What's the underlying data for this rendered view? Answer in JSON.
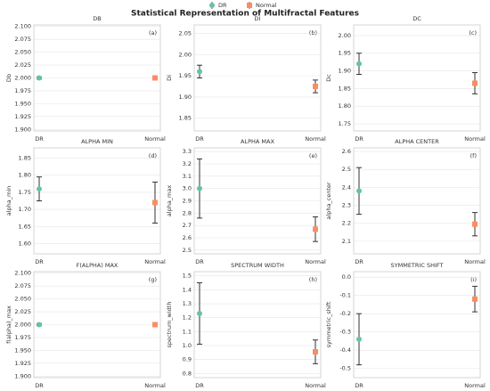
{
  "title": "Statistical Representation of Multifractal Features",
  "legend": [
    {
      "name": "DR",
      "color": "#66c2a5",
      "marker": "circle"
    },
    {
      "name": "Normal",
      "color": "#fc8d62",
      "marker": "square"
    }
  ],
  "chart_data": [
    {
      "type": "errorbar",
      "title": "DB",
      "panel_label": "(a)",
      "y_label": "Db",
      "categories": [
        "DR",
        "Normal"
      ],
      "values": [
        2.0,
        2.0
      ],
      "errors": [
        0.002,
        0.002
      ],
      "colors": [
        "#66c2a5",
        "#fc8d62"
      ],
      "ylim": [
        1.897,
        2.103
      ],
      "yticks": [
        {
          "value": 1.9,
          "label": "1.900"
        },
        {
          "value": 1.925,
          "label": "1.925"
        },
        {
          "value": 1.95,
          "label": "1.950"
        },
        {
          "value": 1.975,
          "label": "1.975"
        },
        {
          "value": 2.0,
          "label": "2.000"
        },
        {
          "value": 2.025,
          "label": "2.025"
        },
        {
          "value": 2.05,
          "label": "2.050"
        },
        {
          "value": 2.075,
          "label": "2.075"
        },
        {
          "value": 2.1,
          "label": "2.100"
        }
      ],
      "grid": true
    },
    {
      "type": "errorbar",
      "title": "DI",
      "panel_label": "(b)",
      "y_label": "Di",
      "categories": [
        "DR",
        "Normal"
      ],
      "values": [
        1.96,
        1.925
      ],
      "errors": [
        0.015,
        0.015
      ],
      "colors": [
        "#66c2a5",
        "#fc8d62"
      ],
      "ylim": [
        1.82,
        2.07
      ],
      "yticks": [
        1.85,
        {
          "value": 1.9,
          "label": "1.90"
        },
        1.95,
        {
          "value": 2.0,
          "label": "2.00"
        },
        2.05
      ],
      "grid": true
    },
    {
      "type": "errorbar",
      "title": "DC",
      "panel_label": "(c)",
      "y_label": "Dc",
      "categories": [
        "DR",
        "Normal"
      ],
      "values": [
        1.92,
        1.865
      ],
      "errors": [
        0.03,
        0.03
      ],
      "colors": [
        "#66c2a5",
        "#fc8d62"
      ],
      "ylim": [
        1.73,
        2.03
      ],
      "yticks": [
        1.75,
        {
          "value": 1.8,
          "label": "1.80"
        },
        1.85,
        {
          "value": 1.9,
          "label": "1.90"
        },
        1.95,
        {
          "value": 2.0,
          "label": "2.00"
        }
      ],
      "grid": true
    },
    {
      "type": "errorbar",
      "title": "ALPHA MIN",
      "panel_label": "(d)",
      "y_label": "alpha_min",
      "categories": [
        "DR",
        "Normal"
      ],
      "values": [
        1.76,
        1.72
      ],
      "errors": [
        0.035,
        0.06
      ],
      "colors": [
        "#66c2a5",
        "#fc8d62"
      ],
      "ylim": [
        1.57,
        1.88
      ],
      "yticks": [
        {
          "value": 1.6,
          "label": "1.60"
        },
        1.65,
        {
          "value": 1.7,
          "label": "1.70"
        },
        1.75,
        {
          "value": 1.8,
          "label": "1.80"
        },
        1.85
      ],
      "grid": true
    },
    {
      "type": "errorbar",
      "title": "ALPHA MAX",
      "panel_label": "(e)",
      "y_label": "alpha_max",
      "categories": [
        "DR",
        "Normal"
      ],
      "values": [
        3.0,
        2.67
      ],
      "errors": [
        0.24,
        0.1
      ],
      "colors": [
        "#66c2a5",
        "#fc8d62"
      ],
      "ylim": [
        2.47,
        3.33
      ],
      "yticks": [
        2.5,
        2.6,
        2.7,
        2.8,
        2.9,
        {
          "value": 3.0,
          "label": "3.0"
        },
        3.1,
        3.2,
        3.3
      ],
      "grid": true
    },
    {
      "type": "errorbar",
      "title": "ALPHA CENTER",
      "panel_label": "(f)",
      "y_label": "alpha_center",
      "categories": [
        "DR",
        "Normal"
      ],
      "values": [
        2.38,
        2.195
      ],
      "errors": [
        0.13,
        0.065
      ],
      "colors": [
        "#66c2a5",
        "#fc8d62"
      ],
      "ylim": [
        2.03,
        2.62
      ],
      "yticks": [
        2.1,
        2.2,
        2.3,
        2.4,
        2.5,
        2.6
      ],
      "grid": true
    },
    {
      "type": "errorbar",
      "title": "F(ALPHA) MAX",
      "panel_label": "(g)",
      "y_label": "f(alpha)_max",
      "categories": [
        "DR",
        "Normal"
      ],
      "values": [
        2.0,
        2.0
      ],
      "errors": [
        0.002,
        0.002
      ],
      "colors": [
        "#66c2a5",
        "#fc8d62"
      ],
      "ylim": [
        1.897,
        2.103
      ],
      "yticks": [
        {
          "value": 1.9,
          "label": "1.900"
        },
        {
          "value": 1.925,
          "label": "1.925"
        },
        {
          "value": 1.95,
          "label": "1.950"
        },
        {
          "value": 1.975,
          "label": "1.975"
        },
        {
          "value": 2.0,
          "label": "2.000"
        },
        {
          "value": 2.025,
          "label": "2.025"
        },
        {
          "value": 2.05,
          "label": "2.050"
        },
        {
          "value": 2.075,
          "label": "2.075"
        },
        {
          "value": 2.1,
          "label": "2.100"
        }
      ],
      "grid": true
    },
    {
      "type": "errorbar",
      "title": "SPECTRUM WIDTH",
      "panel_label": "(h)",
      "y_label": "spectrum_width",
      "categories": [
        "DR",
        "Normal"
      ],
      "values": [
        1.23,
        0.955
      ],
      "errors": [
        0.22,
        0.085
      ],
      "colors": [
        "#66c2a5",
        "#fc8d62"
      ],
      "ylim": [
        0.77,
        1.53
      ],
      "yticks": [
        0.8,
        0.9,
        {
          "value": 1.0,
          "label": "1.0"
        },
        1.1,
        1.2,
        1.3,
        1.4,
        1.5
      ],
      "grid": true
    },
    {
      "type": "errorbar",
      "title": "SYMMETRIC SHIFT",
      "panel_label": "(i)",
      "y_label": "symmetric_shift",
      "categories": [
        "DR",
        "Normal"
      ],
      "values": [
        -0.34,
        -0.12
      ],
      "errors": [
        0.14,
        0.07
      ],
      "colors": [
        "#66c2a5",
        "#fc8d62"
      ],
      "ylim": [
        -0.55,
        0.03
      ],
      "yticks": [
        -0.5,
        -0.4,
        -0.3,
        -0.2,
        -0.1,
        {
          "value": 0,
          "label": "0.0"
        }
      ],
      "grid": true
    }
  ]
}
